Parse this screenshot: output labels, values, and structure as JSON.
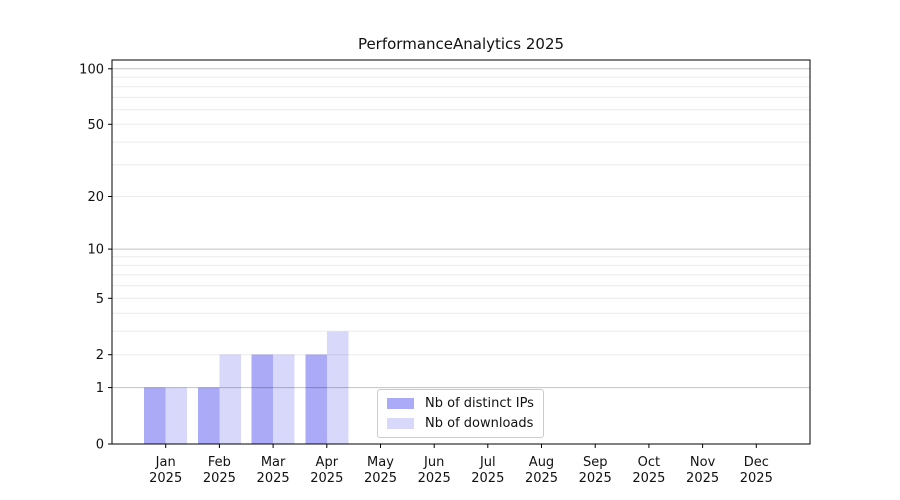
{
  "chart_data": {
    "type": "bar",
    "title": "PerformanceAnalytics 2025",
    "categories": [
      "Jan",
      "Feb",
      "Mar",
      "Apr",
      "May",
      "Jun",
      "Jul",
      "Aug",
      "Sep",
      "Oct",
      "Nov",
      "Dec"
    ],
    "x_axis": {
      "year_line": "2025"
    },
    "series": [
      {
        "name": "Nb of distinct IPs",
        "color": "#aaaaf6",
        "values": [
          1,
          1,
          2,
          2,
          0,
          0,
          0,
          0,
          0,
          0,
          0,
          0
        ]
      },
      {
        "name": "Nb of downloads",
        "color": "#d8d8fa",
        "values": [
          1,
          2,
          2,
          3,
          0,
          0,
          0,
          0,
          0,
          0,
          0,
          0
        ]
      }
    ],
    "y_axis": {
      "scale": "symlog(log1p)",
      "tick_labels": [
        0,
        1,
        2,
        5,
        10,
        20,
        50,
        100
      ],
      "major_gridlines": [
        1,
        10,
        100
      ],
      "minor_gridlines": [
        2,
        3,
        4,
        5,
        6,
        7,
        8,
        9,
        20,
        30,
        40,
        50,
        60,
        70,
        80,
        90
      ],
      "ylim": [
        0,
        113
      ]
    },
    "legend": {
      "location": "inside-lower-center",
      "items": [
        "Nb of distinct IPs",
        "Nb of downloads"
      ]
    },
    "grid": true
  },
  "colors": {
    "background": "#ffffff",
    "axis": "#000000",
    "grid_minor": "rgba(0,0,0,0.08)",
    "grid_major": "rgba(0,0,0,0.24)",
    "legend_border": "#cccccc",
    "text": "#111111"
  }
}
